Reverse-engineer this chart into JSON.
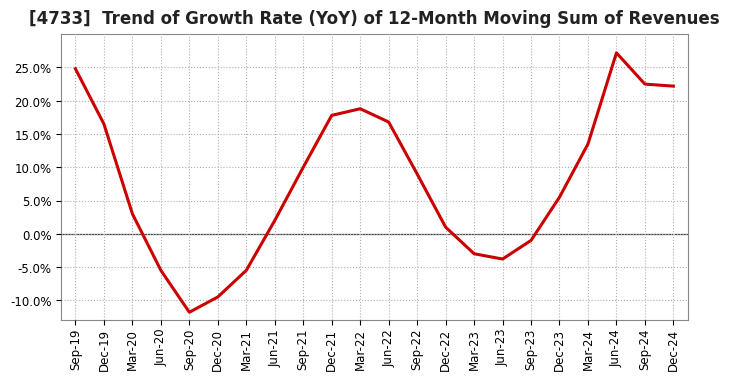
{
  "title": "[4733]  Trend of Growth Rate (YoY) of 12-Month Moving Sum of Revenues",
  "line_color": "#cc0000",
  "background_color": "#ffffff",
  "grid_color": "#b0b0b0",
  "x_labels": [
    "Sep-19",
    "Dec-19",
    "Mar-20",
    "Jun-20",
    "Sep-20",
    "Dec-20",
    "Mar-21",
    "Jun-21",
    "Sep-21",
    "Dec-21",
    "Mar-22",
    "Jun-22",
    "Sep-22",
    "Dec-22",
    "Mar-23",
    "Jun-23",
    "Sep-23",
    "Dec-23",
    "Mar-24",
    "Jun-24",
    "Sep-24",
    "Dec-24"
  ],
  "y_values": [
    0.248,
    0.165,
    0.03,
    -0.055,
    -0.118,
    -0.095,
    -0.055,
    0.02,
    0.1,
    0.178,
    0.188,
    0.168,
    0.09,
    0.01,
    -0.03,
    -0.038,
    -0.01,
    0.055,
    0.135,
    0.272,
    0.225,
    0.222
  ],
  "ylim": [
    -0.13,
    0.3
  ],
  "yticks": [
    -0.1,
    -0.05,
    0.0,
    0.05,
    0.1,
    0.15,
    0.2,
    0.25
  ],
  "title_fontsize": 12,
  "tick_fontsize": 8.5,
  "line_width": 2.2
}
